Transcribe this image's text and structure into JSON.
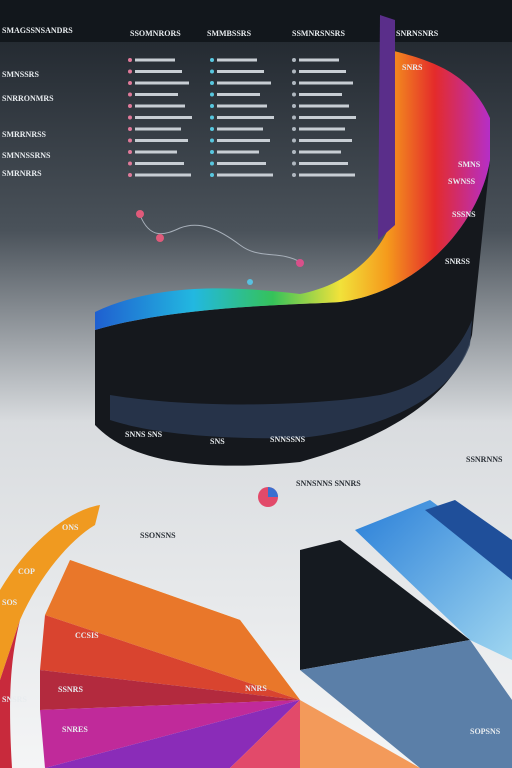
{
  "header": {
    "columns": [
      "SMAGSSNSANDRS",
      "SSOMNRORS",
      "SMMBSSRS",
      "SSMNRSNSRS",
      "SNRNSNRS"
    ]
  },
  "left_labels": [
    "SMNSSRS",
    "SNRRONMRS",
    "SMRRNRSS",
    "SMNNSSRNS",
    "SMRNRRS"
  ],
  "ring_labels": [
    "SNRS",
    "SMNS",
    "SWNSS",
    "SSSNS",
    "SNRSS"
  ],
  "band_labels": [
    "SNNS SNS",
    "SNS",
    "SNNSSNS"
  ],
  "callouts": [
    "SNNSNNS SNNRS",
    "SSONSNS",
    "SSNRNNS"
  ],
  "bottom_labels": [
    "ONS",
    "COP",
    "SOS",
    "CCSIS",
    "SSNRS",
    "SNSRS",
    "SNRES",
    "NNRS",
    "SOPSNS"
  ]
}
